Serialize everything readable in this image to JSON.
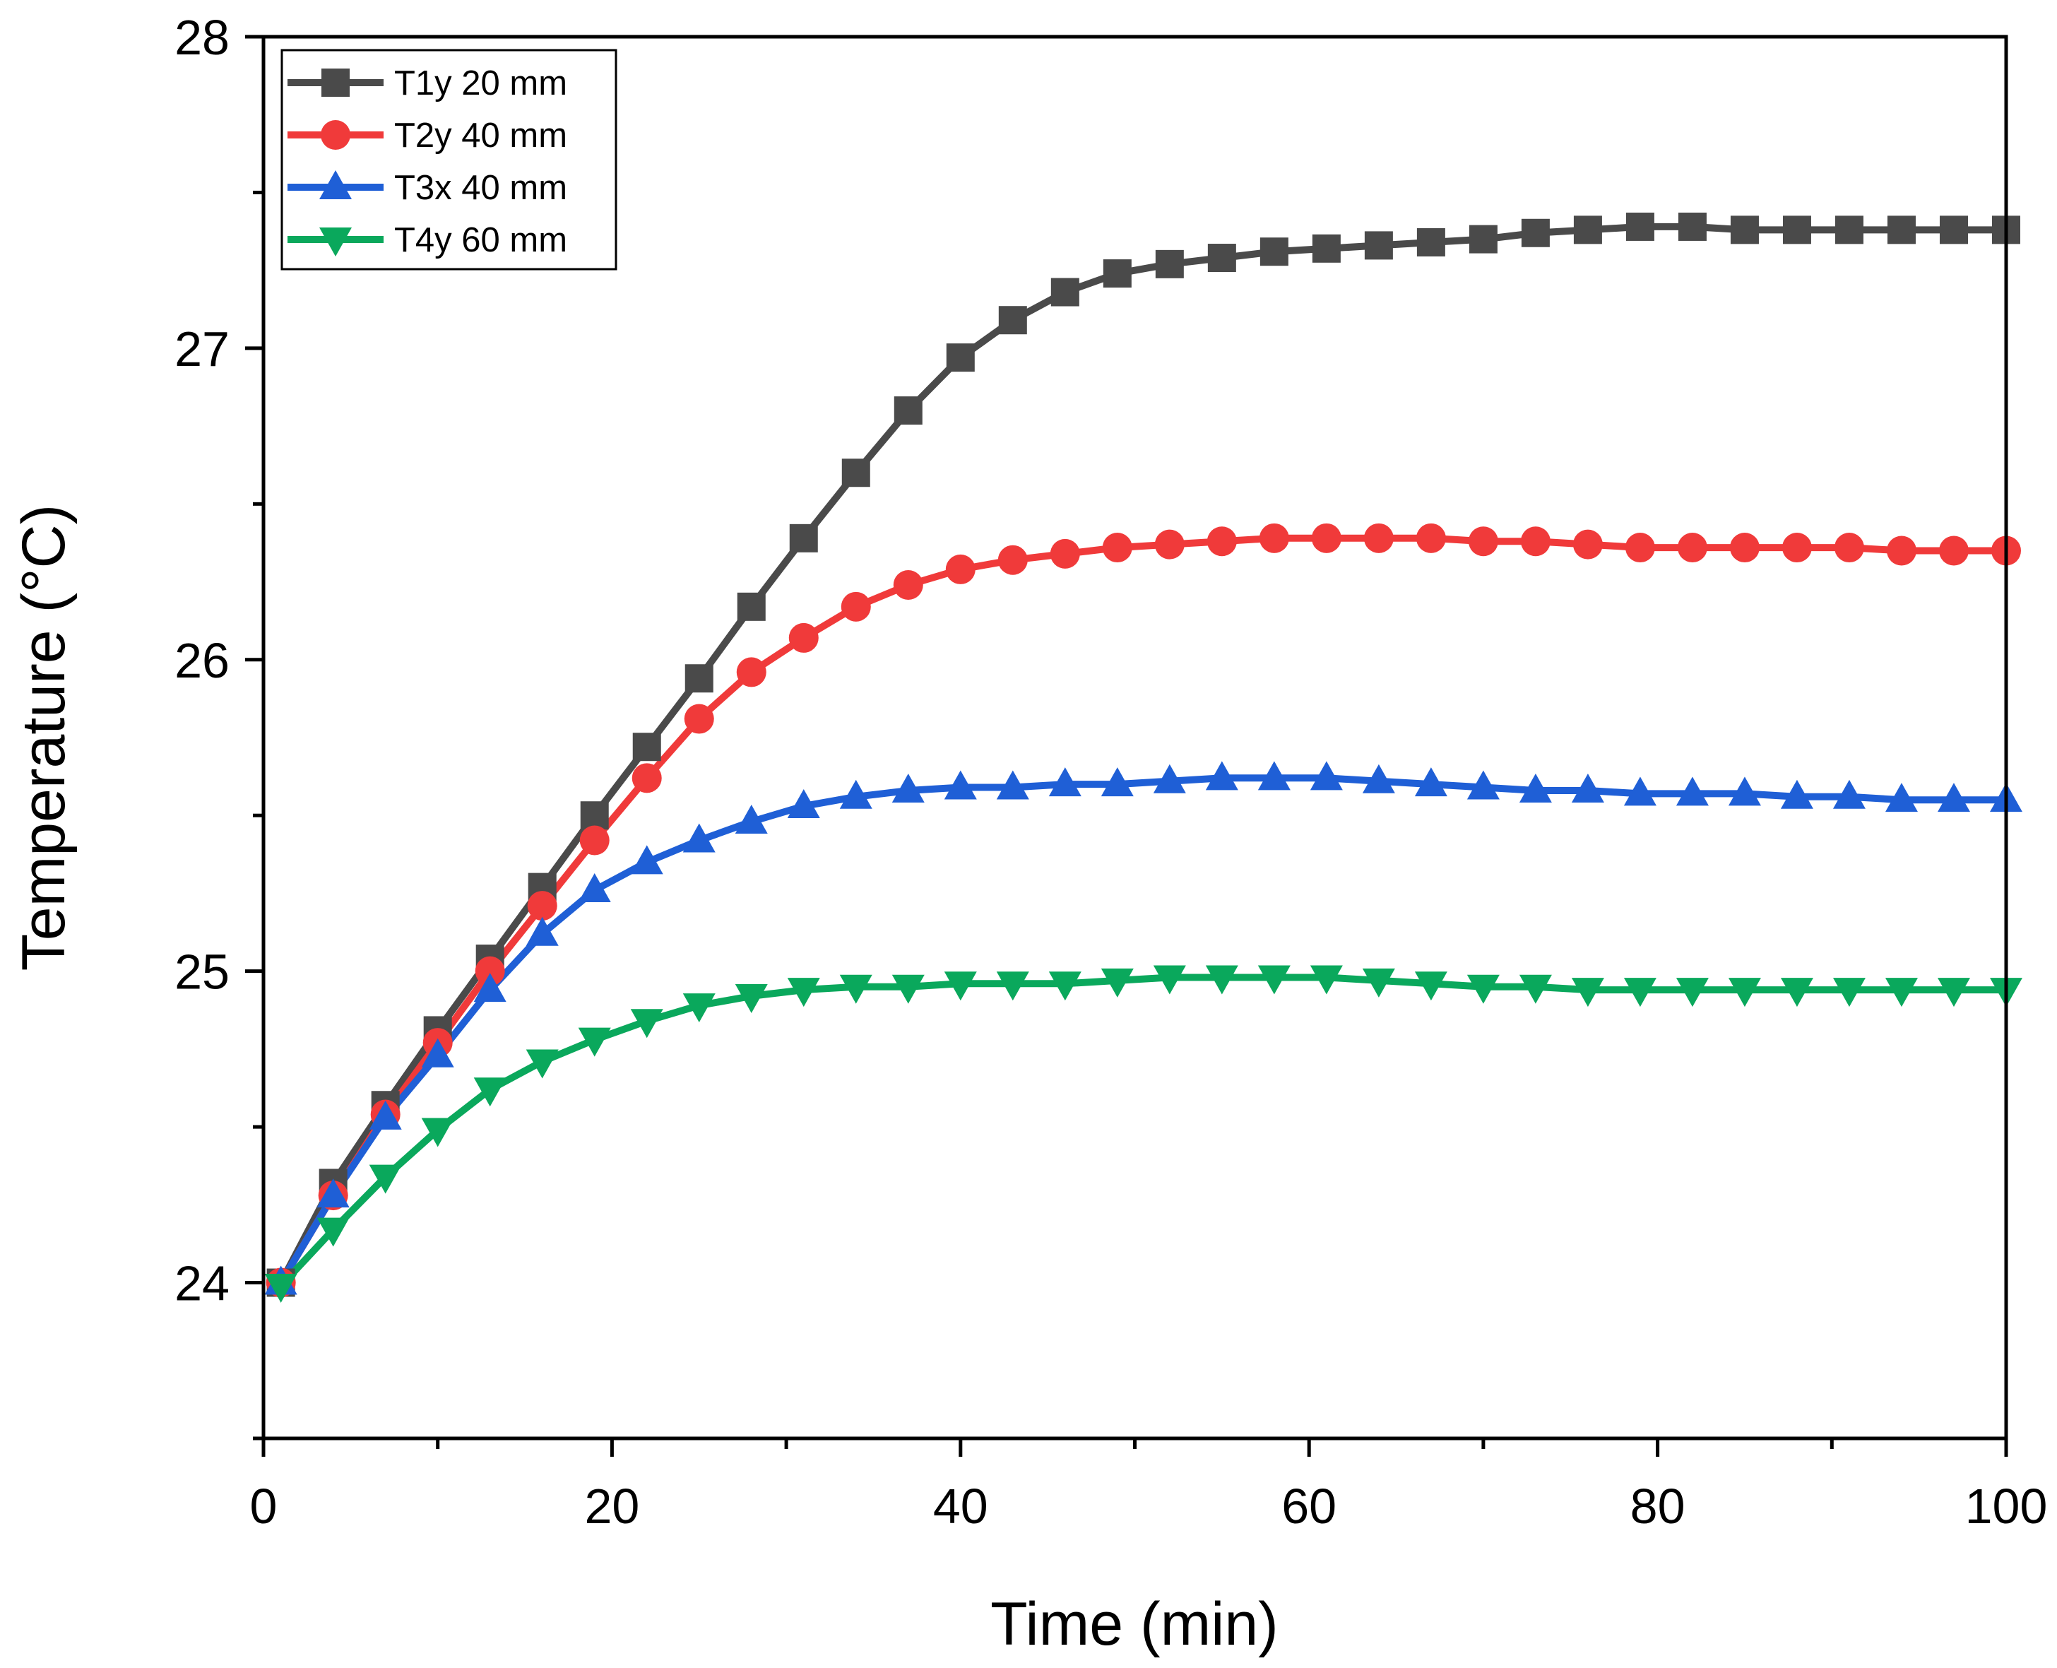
{
  "chart_data": {
    "type": "line",
    "title": "",
    "xlabel": "Time (min)",
    "ylabel": "Temperature (°C)",
    "xlim": [
      0,
      100
    ],
    "ylim": [
      23.5,
      28
    ],
    "xticks": [
      0,
      20,
      40,
      60,
      80,
      100
    ],
    "yticks": [
      24,
      25,
      26,
      27,
      28
    ],
    "xtick_labels": [
      "0",
      "20",
      "40",
      "60",
      "80",
      "100"
    ],
    "ytick_labels": [
      "24",
      "25",
      "26",
      "27",
      "28"
    ],
    "grid": false,
    "legend_position": "top-left",
    "x": [
      1,
      4,
      7,
      10,
      13,
      16,
      19,
      22,
      25,
      28,
      31,
      34,
      37,
      40,
      43,
      46,
      49,
      52,
      55,
      58,
      61,
      64,
      67,
      70,
      73,
      76,
      79,
      82,
      85,
      88,
      91,
      94,
      97,
      100
    ],
    "series": [
      {
        "name": "T1y 20 mm",
        "color": "#4a4a4a",
        "marker": "square",
        "values": [
          24.0,
          24.32,
          24.57,
          24.81,
          25.04,
          25.27,
          25.5,
          25.72,
          25.94,
          26.17,
          26.39,
          26.6,
          26.8,
          26.97,
          27.09,
          27.18,
          27.24,
          27.27,
          27.29,
          27.31,
          27.32,
          27.33,
          27.34,
          27.35,
          27.37,
          27.38,
          27.39,
          27.39,
          27.38,
          27.38,
          27.38,
          27.38,
          27.38,
          27.38
        ]
      },
      {
        "name": "T2y 40 mm",
        "color": "#f03a3a",
        "marker": "circle",
        "values": [
          24.0,
          24.28,
          24.54,
          24.77,
          25.0,
          25.21,
          25.42,
          25.62,
          25.81,
          25.96,
          26.07,
          26.17,
          26.24,
          26.29,
          26.32,
          26.34,
          26.36,
          26.37,
          26.38,
          26.39,
          26.39,
          26.39,
          26.39,
          26.38,
          26.38,
          26.37,
          26.36,
          26.36,
          26.36,
          26.36,
          26.36,
          26.35,
          26.35,
          26.35
        ]
      },
      {
        "name": "T3x 40 mm",
        "color": "#1f5fd6",
        "marker": "triangle-up",
        "values": [
          24.0,
          24.28,
          24.53,
          24.73,
          24.94,
          25.12,
          25.26,
          25.35,
          25.42,
          25.48,
          25.53,
          25.56,
          25.58,
          25.59,
          25.59,
          25.6,
          25.6,
          25.61,
          25.62,
          25.62,
          25.62,
          25.61,
          25.6,
          25.59,
          25.58,
          25.58,
          25.57,
          25.57,
          25.57,
          25.56,
          25.56,
          25.55,
          25.55,
          25.55
        ]
      },
      {
        "name": "T4y 60 mm",
        "color": "#0aa85c",
        "marker": "triangle-down",
        "values": [
          23.99,
          24.17,
          24.34,
          24.49,
          24.62,
          24.71,
          24.78,
          24.84,
          24.89,
          24.92,
          24.94,
          24.95,
          24.95,
          24.96,
          24.96,
          24.96,
          24.97,
          24.98,
          24.98,
          24.98,
          24.98,
          24.97,
          24.96,
          24.95,
          24.95,
          24.94,
          24.94,
          24.94,
          24.94,
          24.94,
          24.94,
          24.94,
          24.94,
          24.94
        ]
      }
    ]
  }
}
